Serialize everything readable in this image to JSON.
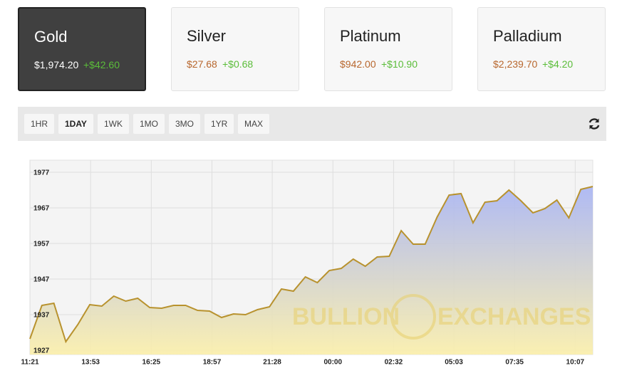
{
  "cards": [
    {
      "name": "Gold",
      "price": "$1,974.20",
      "change": "+$42.60",
      "selected": true
    },
    {
      "name": "Silver",
      "price": "$27.68",
      "change": "+$0.68",
      "selected": false
    },
    {
      "name": "Platinum",
      "price": "$942.00",
      "change": "+$10.90",
      "selected": false
    },
    {
      "name": "Palladium",
      "price": "$2,239.70",
      "change": "+$4.20",
      "selected": false
    }
  ],
  "ranges": [
    "1HR",
    "1DAY",
    "1WK",
    "1MO",
    "3MO",
    "1YR",
    "MAX"
  ],
  "selected_range": 1,
  "watermark": [
    "BULLION",
    "EXCHANGES"
  ],
  "chart_data": {
    "type": "area",
    "color": "#b8922e",
    "grid": true,
    "x": [
      0,
      30,
      60,
      90,
      120,
      150,
      180,
      210,
      240,
      270,
      300,
      330,
      360,
      390,
      420,
      450,
      480,
      510,
      540,
      570,
      600,
      630,
      660,
      690,
      720,
      750,
      780,
      810,
      840,
      870,
      900,
      930,
      960,
      990,
      1020,
      1050,
      1080,
      1110,
      1140,
      1170,
      1200,
      1230,
      1260,
      1290,
      1320,
      1350,
      1380,
      1410
    ],
    "values": [
      1930.2,
      1939.6,
      1940.2,
      1929.4,
      1934.2,
      1939.8,
      1939.4,
      1942.2,
      1940.8,
      1941.6,
      1939,
      1938.8,
      1939.6,
      1939.6,
      1938.2,
      1938,
      1936.2,
      1937.2,
      1937,
      1938.4,
      1939.2,
      1944.2,
      1943.6,
      1947.6,
      1946,
      1949.4,
      1950,
      1952.6,
      1950.6,
      1953.2,
      1953.4,
      1960.6,
      1956.8,
      1956.8,
      1964.4,
      1970.6,
      1971,
      1962.8,
      1968.6,
      1969,
      1972,
      1969,
      1965.6,
      1966.8,
      1969.2,
      1964.2,
      1972.2,
      1973
    ],
    "xlim": [
      0,
      1410
    ],
    "ylim": [
      1925.8,
      1980.4
    ],
    "yticks": [
      1927,
      1937,
      1947,
      1957,
      1967,
      1977
    ],
    "xticks": [
      {
        "value": 0,
        "label": "11:21"
      },
      {
        "value": 152,
        "label": "13:53"
      },
      {
        "value": 304,
        "label": "16:25"
      },
      {
        "value": 456,
        "label": "18:57"
      },
      {
        "value": 607,
        "label": "21:28"
      },
      {
        "value": 759,
        "label": "00:00"
      },
      {
        "value": 911,
        "label": "02:32"
      },
      {
        "value": 1062,
        "label": "05:03"
      },
      {
        "value": 1214,
        "label": "07:35"
      },
      {
        "value": 1366,
        "label": "10:07"
      }
    ]
  }
}
